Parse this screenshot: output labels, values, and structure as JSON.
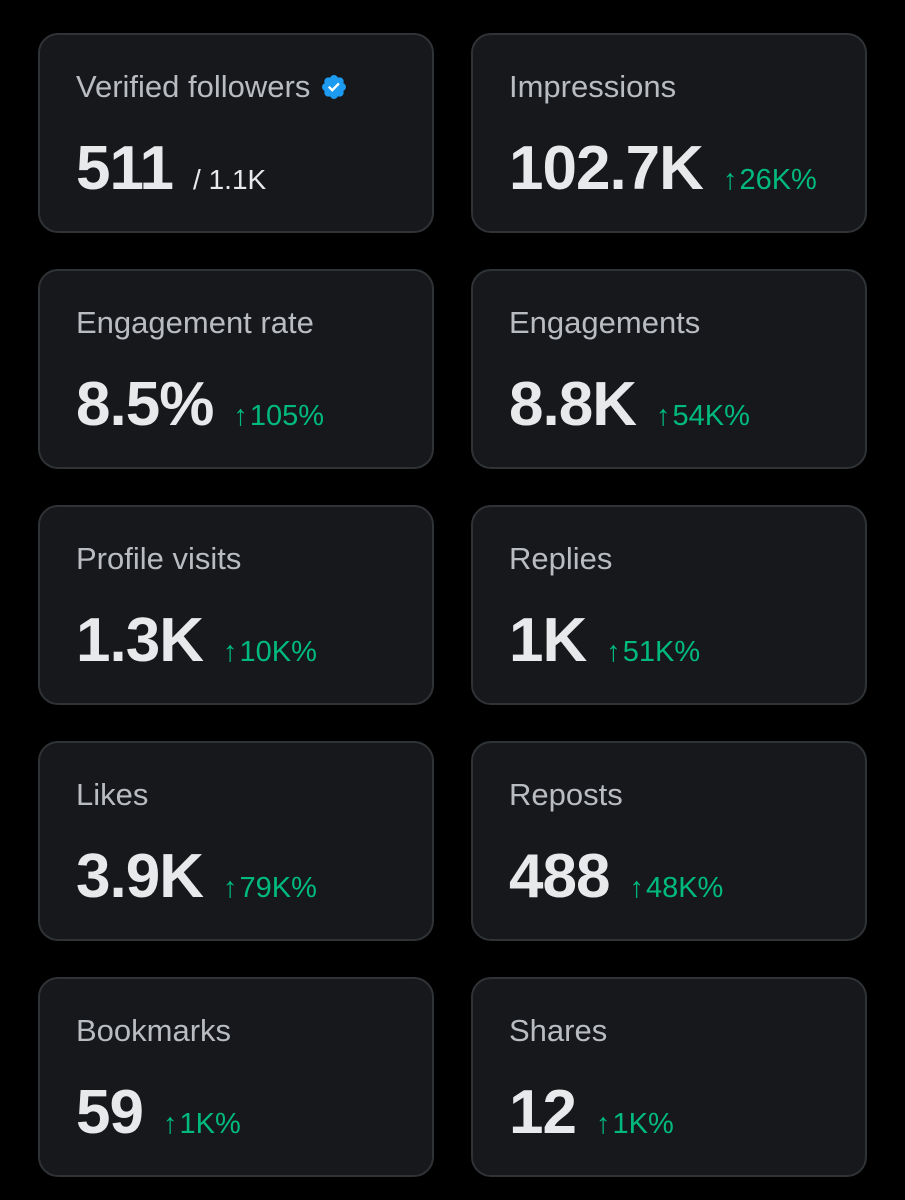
{
  "accent_color": "#00ba7c",
  "verified_color": "#1d9bf0",
  "cards": [
    {
      "label": "Verified followers",
      "value": "511",
      "sub": "/ 1.1K",
      "verified": true
    },
    {
      "label": "Impressions",
      "value": "102.7K",
      "delta": "26K%"
    },
    {
      "label": "Engagement rate",
      "value": "8.5%",
      "delta": "105%"
    },
    {
      "label": "Engagements",
      "value": "8.8K",
      "delta": "54K%"
    },
    {
      "label": "Profile visits",
      "value": "1.3K",
      "delta": "10K%"
    },
    {
      "label": "Replies",
      "value": "1K",
      "delta": "51K%"
    },
    {
      "label": "Likes",
      "value": "3.9K",
      "delta": "79K%"
    },
    {
      "label": "Reposts",
      "value": "488",
      "delta": "48K%"
    },
    {
      "label": "Bookmarks",
      "value": "59",
      "delta": "1K%"
    },
    {
      "label": "Shares",
      "value": "12",
      "delta": "1K%"
    }
  ],
  "icons": {
    "verified": "verified-badge-icon",
    "arrow": "arrow-up-icon"
  }
}
